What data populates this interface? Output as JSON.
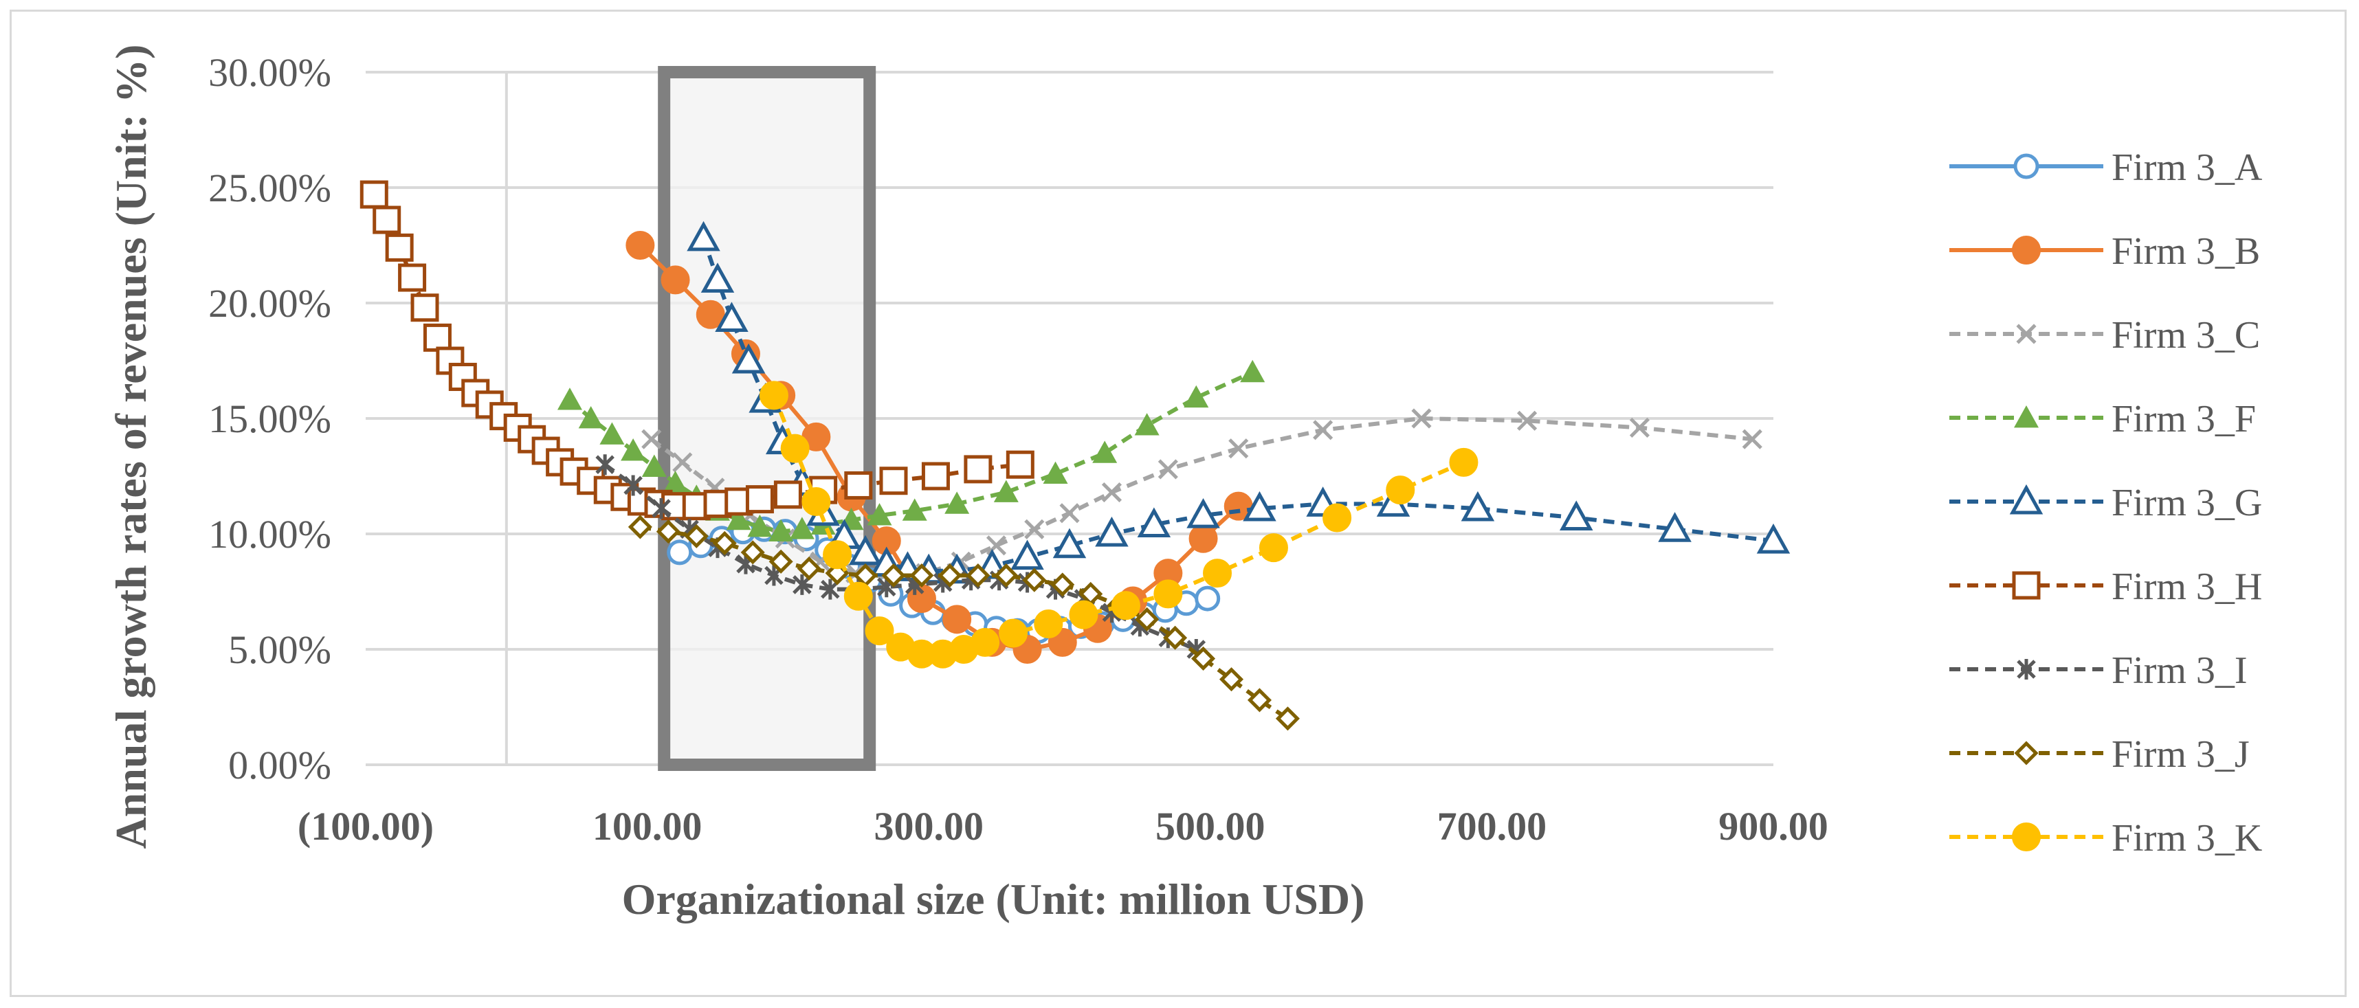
{
  "chart_data": {
    "type": "line",
    "title": "",
    "xlabel": "Organizational size (Unit: million USD)",
    "ylabel": "Annual growth rates of revenues (Unit: %)",
    "xlim": [
      -100,
      900
    ],
    "ylim": [
      0,
      30
    ],
    "x_ticks": [
      -100,
      100,
      300,
      500,
      700,
      900
    ],
    "x_tick_labels": [
      "(100.00)",
      "100.00",
      "300.00",
      "500.00",
      "700.00",
      "900.00"
    ],
    "y_ticks": [
      0,
      5,
      10,
      15,
      20,
      25,
      30
    ],
    "y_tick_labels": [
      "0.00%",
      "5.00%",
      "10.00%",
      "15.00%",
      "20.00%",
      "25.00%",
      "30.00%"
    ],
    "grid": "horizontal",
    "legend_position": "right",
    "highlight_region": {
      "x_range": [
        112,
        258
      ],
      "y_range": [
        0,
        30
      ]
    },
    "series": [
      {
        "name": "Firm 3_A",
        "color": "#5b9bd5",
        "marker": "circle-open",
        "dashed": false,
        "x": [
          123,
          138,
          153,
          168,
          183,
          198,
          213,
          228,
          243,
          258,
          273,
          288,
          303,
          318,
          333,
          348,
          363,
          378,
          393,
          408,
          423,
          438,
          453,
          468,
          483,
          498
        ],
        "y": [
          9.2,
          9.5,
          9.8,
          10.1,
          10.2,
          10.1,
          9.8,
          9.3,
          8.6,
          8.0,
          7.4,
          6.9,
          6.6,
          6.3,
          6.1,
          5.9,
          5.8,
          5.8,
          5.9,
          6.0,
          6.1,
          6.3,
          6.5,
          6.7,
          7.0,
          7.2
        ]
      },
      {
        "name": "Firm 3_B",
        "color": "#ed7d31",
        "marker": "circle-filled",
        "dashed": false,
        "x": [
          95,
          120,
          145,
          170,
          195,
          220,
          245,
          270,
          295,
          320,
          345,
          370,
          395,
          420,
          445,
          470,
          495,
          520
        ],
        "y": [
          22.5,
          21.0,
          19.5,
          17.8,
          16.0,
          14.2,
          11.6,
          9.7,
          7.2,
          6.3,
          5.3,
          5.0,
          5.3,
          5.9,
          7.1,
          8.3,
          9.8,
          11.2
        ]
      },
      {
        "name": "Firm 3_C",
        "color": "#a5a5a5",
        "marker": "x",
        "dashed": true,
        "x": [
          103,
          125,
          148,
          173,
          198,
          223,
          248,
          273,
          298,
          323,
          348,
          375,
          400,
          430,
          470,
          520,
          580,
          650,
          725,
          805,
          885
        ],
        "y": [
          14.1,
          13.1,
          12.0,
          10.8,
          9.8,
          8.8,
          8.3,
          8.1,
          8.3,
          8.8,
          9.5,
          10.2,
          10.9,
          11.8,
          12.8,
          13.7,
          14.5,
          15.0,
          14.9,
          14.6,
          14.1
        ]
      },
      {
        "name": "Firm 3_F",
        "color": "#70ad47",
        "marker": "triangle-filled",
        "dashed": true,
        "x": [
          45,
          60,
          75,
          90,
          105,
          120,
          135,
          150,
          165,
          180,
          195,
          210,
          225,
          245,
          265,
          290,
          320,
          355,
          390,
          425,
          455,
          490,
          530
        ],
        "y": [
          15.8,
          15.0,
          14.3,
          13.6,
          12.9,
          12.2,
          11.6,
          11.0,
          10.6,
          10.3,
          10.1,
          10.2,
          10.4,
          10.6,
          10.8,
          11.0,
          11.3,
          11.8,
          12.6,
          13.5,
          14.7,
          15.9,
          17.0
        ]
      },
      {
        "name": "Firm 3_G",
        "color": "#255e91",
        "marker": "triangle-open",
        "dashed": true,
        "x": [
          140,
          150,
          160,
          172,
          184,
          196,
          210,
          225,
          240,
          255,
          270,
          285,
          300,
          320,
          345,
          370,
          400,
          430,
          460,
          495,
          535,
          580,
          630,
          690,
          760,
          830,
          900
        ],
        "y": [
          22.8,
          21.0,
          19.3,
          17.5,
          15.8,
          14.0,
          12.2,
          10.9,
          9.9,
          9.2,
          8.7,
          8.5,
          8.4,
          8.4,
          8.6,
          9.0,
          9.5,
          10.0,
          10.4,
          10.8,
          11.1,
          11.3,
          11.3,
          11.1,
          10.7,
          10.2,
          9.7
        ]
      },
      {
        "name": "Firm 3_H",
        "color": "#9e480e",
        "marker": "square-open",
        "dashed": true,
        "x": [
          -94,
          -85,
          -76,
          -67,
          -58,
          -49,
          -40,
          -31,
          -22,
          -12,
          -2,
          8,
          18,
          28,
          38,
          48,
          60,
          72,
          84,
          96,
          108,
          120,
          135,
          150,
          165,
          180,
          200,
          225,
          250,
          275,
          305,
          335,
          365
        ],
        "y": [
          24.7,
          23.6,
          22.4,
          21.1,
          19.8,
          18.5,
          17.5,
          16.8,
          16.1,
          15.6,
          15.1,
          14.6,
          14.1,
          13.6,
          13.1,
          12.7,
          12.3,
          11.9,
          11.6,
          11.4,
          11.3,
          11.2,
          11.2,
          11.3,
          11.4,
          11.5,
          11.7,
          11.9,
          12.1,
          12.3,
          12.5,
          12.8,
          13.0
        ]
      },
      {
        "name": "Firm 3_I",
        "color": "#595959",
        "marker": "star",
        "dashed": true,
        "x": [
          70,
          90,
          110,
          130,
          150,
          170,
          190,
          210,
          230,
          250,
          270,
          290,
          310,
          330,
          350,
          370,
          390,
          410,
          430,
          450,
          470,
          490
        ],
        "y": [
          13.0,
          12.1,
          11.1,
          10.2,
          9.4,
          8.7,
          8.2,
          7.8,
          7.6,
          7.6,
          7.7,
          7.8,
          7.9,
          8.0,
          8.0,
          7.9,
          7.6,
          7.2,
          6.6,
          6.0,
          5.5,
          5.0
        ]
      },
      {
        "name": "Firm 3_J",
        "color": "#7f6000",
        "marker": "diamond-open",
        "dashed": true,
        "x": [
          95,
          115,
          135,
          155,
          175,
          195,
          215,
          235,
          255,
          275,
          295,
          315,
          335,
          355,
          375,
          395,
          415,
          435,
          455,
          475,
          495,
          515,
          535,
          555
        ],
        "y": [
          10.3,
          10.1,
          9.9,
          9.6,
          9.2,
          8.8,
          8.5,
          8.3,
          8.2,
          8.2,
          8.2,
          8.2,
          8.2,
          8.2,
          8.0,
          7.8,
          7.4,
          6.9,
          6.3,
          5.5,
          4.6,
          3.7,
          2.8,
          2.0
        ]
      },
      {
        "name": "Firm 3_K",
        "color": "#ffc000",
        "marker": "circle-filled",
        "dashed": true,
        "x": [
          190,
          205,
          220,
          235,
          250,
          265,
          280,
          295,
          310,
          325,
          340,
          360,
          385,
          410,
          440,
          470,
          505,
          545,
          590,
          635,
          680
        ],
        "y": [
          16.0,
          13.7,
          11.4,
          9.1,
          7.3,
          5.8,
          5.1,
          4.8,
          4.8,
          5.0,
          5.3,
          5.7,
          6.1,
          6.5,
          6.9,
          7.4,
          8.3,
          9.4,
          10.7,
          11.9,
          13.1
        ]
      }
    ]
  }
}
